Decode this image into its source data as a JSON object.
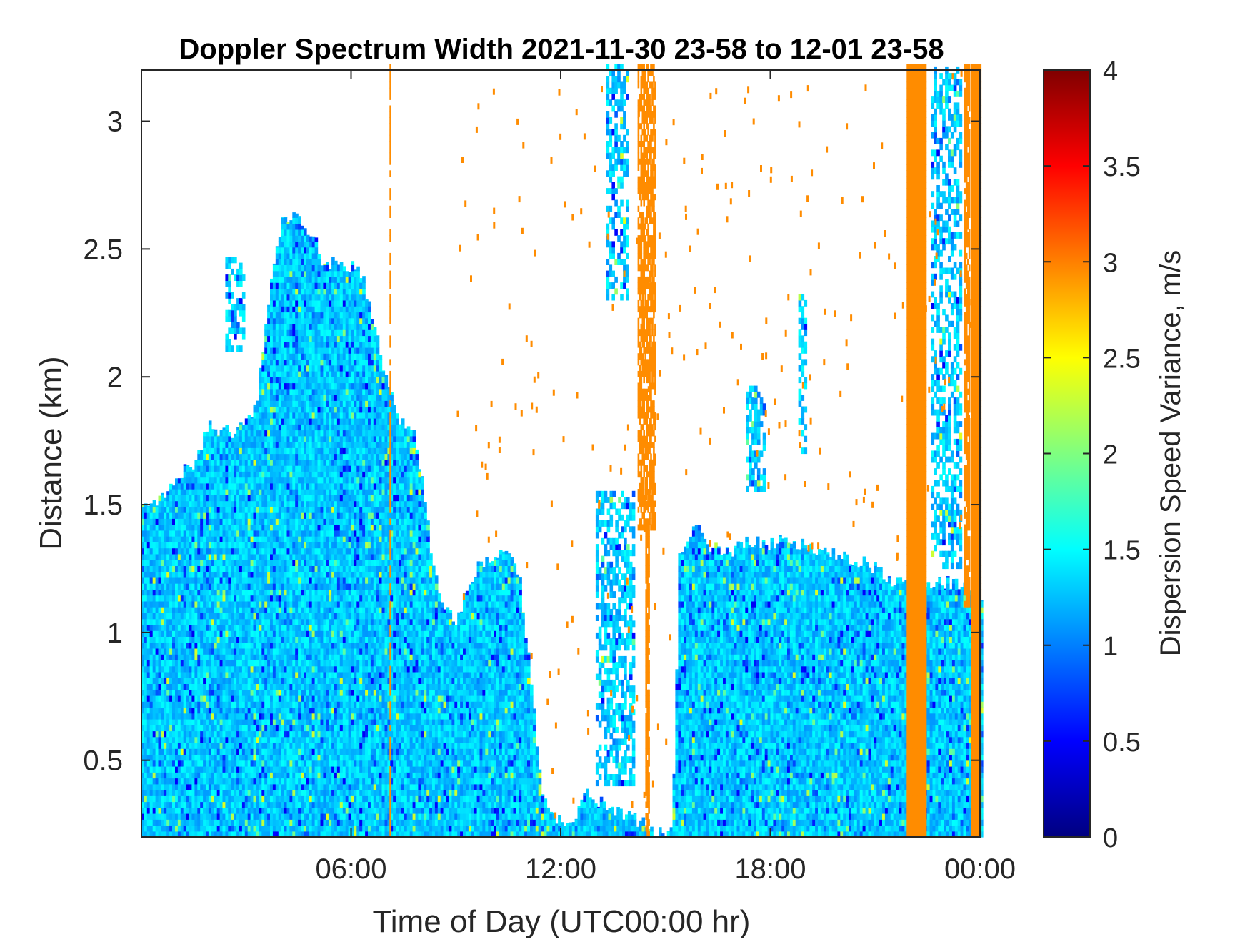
{
  "chart_data": {
    "type": "heatmap",
    "title": "Doppler Spectrum Width 2021-11-30 23-58 to 12-01 23-58",
    "xlabel": "Time of Day (UTC00:00 hr)",
    "ylabel": "Distance (km)",
    "colorbar_label": "Dispersion Speed Variance, m/s",
    "colormap": "jet",
    "x_unit": "hours",
    "xlim": [
      0,
      24
    ],
    "ylim": [
      0.2,
      3.2
    ],
    "clim": [
      0,
      4
    ],
    "x_ticks": [
      {
        "value": 6,
        "label": "06:00"
      },
      {
        "value": 12,
        "label": "12:00"
      },
      {
        "value": 18,
        "label": "18:00"
      },
      {
        "value": 24,
        "label": "00:00"
      }
    ],
    "y_ticks": [
      {
        "value": 0.5,
        "label": "0.5"
      },
      {
        "value": 1,
        "label": "1"
      },
      {
        "value": 1.5,
        "label": "1.5"
      },
      {
        "value": 2,
        "label": "2"
      },
      {
        "value": 2.5,
        "label": "2.5"
      },
      {
        "value": 3,
        "label": "3"
      }
    ],
    "colorbar_ticks": [
      {
        "value": 0,
        "label": "0"
      },
      {
        "value": 0.5,
        "label": "0.5"
      },
      {
        "value": 1,
        "label": "1"
      },
      {
        "value": 1.5,
        "label": "1.5"
      },
      {
        "value": 2,
        "label": "2"
      },
      {
        "value": 2.5,
        "label": "2.5"
      },
      {
        "value": 3,
        "label": "3"
      },
      {
        "value": 3.5,
        "label": "3.5"
      },
      {
        "value": 4,
        "label": "4"
      }
    ],
    "typical_value": 1.3,
    "saturated_value": 2.95,
    "echo_top_profile": [
      [
        0,
        1.52
      ],
      [
        0.4,
        1.5
      ],
      [
        0.8,
        1.55
      ],
      [
        1.1,
        1.62
      ],
      [
        1.6,
        1.68
      ],
      [
        1.9,
        1.82
      ],
      [
        2.5,
        1.78
      ],
      [
        2.9,
        1.82
      ],
      [
        3.3,
        1.9
      ],
      [
        3.5,
        2.15
      ],
      [
        3.8,
        2.45
      ],
      [
        4.0,
        2.6
      ],
      [
        4.5,
        2.62
      ],
      [
        4.9,
        2.55
      ],
      [
        5.2,
        2.45
      ],
      [
        5.8,
        2.45
      ],
      [
        6.3,
        2.4
      ],
      [
        6.6,
        2.25
      ],
      [
        6.9,
        2.05
      ],
      [
        7.3,
        1.85
      ],
      [
        7.8,
        1.78
      ],
      [
        8.1,
        1.55
      ],
      [
        8.3,
        1.3
      ],
      [
        8.6,
        1.1
      ],
      [
        9.0,
        1.05
      ],
      [
        9.3,
        1.15
      ],
      [
        9.6,
        1.25
      ],
      [
        10.0,
        1.3
      ],
      [
        10.4,
        1.3
      ],
      [
        10.8,
        1.25
      ],
      [
        11.0,
        1.0
      ],
      [
        11.3,
        0.6
      ],
      [
        11.5,
        0.35
      ],
      [
        11.7,
        0.28
      ],
      [
        12.2,
        0.25
      ],
      [
        12.5,
        0.3
      ],
      [
        12.7,
        0.4
      ],
      [
        13.0,
        0.35
      ],
      [
        13.4,
        0.3
      ],
      [
        14.0,
        0.28
      ],
      [
        14.4,
        0.25
      ],
      [
        14.6,
        0.22
      ],
      [
        14.9,
        0.22
      ],
      [
        15.2,
        0.22
      ],
      [
        15.4,
        1.3
      ],
      [
        15.8,
        1.42
      ],
      [
        16.2,
        1.35
      ],
      [
        16.8,
        1.3
      ],
      [
        17.3,
        1.35
      ],
      [
        17.8,
        1.35
      ],
      [
        18.2,
        1.35
      ],
      [
        18.8,
        1.35
      ],
      [
        19.2,
        1.32
      ],
      [
        19.6,
        1.3
      ],
      [
        20.0,
        1.3
      ],
      [
        20.6,
        1.28
      ],
      [
        21.0,
        1.25
      ],
      [
        21.6,
        1.2
      ],
      [
        22.0,
        1.18
      ],
      [
        22.4,
        1.2
      ],
      [
        22.9,
        1.2
      ],
      [
        23.4,
        1.18
      ],
      [
        24.0,
        1.15
      ]
    ],
    "clutter_patches": [
      {
        "x0": 2.4,
        "x1": 2.9,
        "y0": 2.1,
        "y1": 2.45
      },
      {
        "x0": 13.0,
        "x1": 14.1,
        "y0": 0.4,
        "y1": 1.55
      },
      {
        "x0": 13.3,
        "x1": 13.9,
        "y0": 2.3,
        "y1": 3.2
      },
      {
        "x0": 22.6,
        "x1": 23.4,
        "y0": 1.25,
        "y1": 3.2
      },
      {
        "x0": 17.3,
        "x1": 17.8,
        "y0": 1.55,
        "y1": 1.95
      },
      {
        "x0": 18.8,
        "x1": 19.0,
        "y0": 1.7,
        "y1": 2.3
      }
    ],
    "saturated_bands": [
      {
        "x0": 14.2,
        "x1": 14.7,
        "y0": 1.4,
        "y1": 3.2,
        "density": 0.75
      },
      {
        "x0": 14.42,
        "x1": 14.5,
        "y0": 0.2,
        "y1": 1.4,
        "density": 0.9
      },
      {
        "x0": 21.9,
        "x1": 22.45,
        "y0": 0.2,
        "y1": 3.2,
        "density": 1.0
      },
      {
        "x0": 23.55,
        "x1": 23.7,
        "y0": 1.1,
        "y1": 3.2,
        "density": 0.9
      },
      {
        "x0": 23.75,
        "x1": 24.0,
        "y0": 0.2,
        "y1": 3.2,
        "density": 1.0
      },
      {
        "x0": 7.1,
        "x1": 7.14,
        "y0": 0.2,
        "y1": 3.2,
        "density": 0.8
      }
    ]
  }
}
